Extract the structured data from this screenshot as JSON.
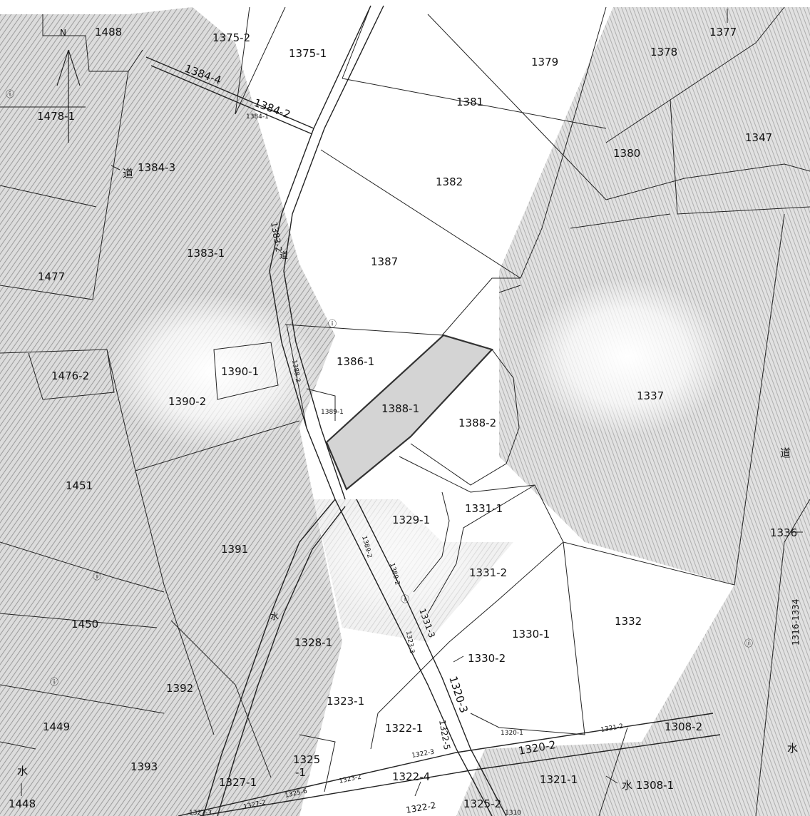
{
  "map": {
    "north_label": "N",
    "parcels": {
      "p1488": "1488",
      "p1375_2": "1375-2",
      "p1375_1": "1375-1",
      "p1379": "1379",
      "p1378": "1378",
      "p1377": "1377",
      "p1384_4": "1384-4",
      "p1384_2": "1384-2",
      "p1384_1": "1384-1",
      "p1478_1": "1478-1",
      "p1381": "1381",
      "p1347": "1347",
      "p1380": "1380",
      "p1384_3": "1384-3",
      "p1382": "1382",
      "p1383_2": "1383-2",
      "p1383_1": "1383-1",
      "p1477": "1477",
      "p1387": "1387",
      "p1386_1": "1386-1",
      "p1390_1": "1390-1",
      "p1476_2": "1476-2",
      "p1388_2_side": "1388-2",
      "p1390_2": "1390-2",
      "p1389_1": "1389-1",
      "p1388_1": "1388-1",
      "p1388_2": "1388-2",
      "p1337": "1337",
      "p1451": "1451",
      "p1331_1": "1331-1",
      "p1329_1": "1329-1",
      "p1336": "1336",
      "p1391": "1391",
      "p1389_2a": "1389-2",
      "p1389_2b": "1389-2",
      "p1331_2": "1331-2",
      "p1450": "1450",
      "p1331_3": "1331-3",
      "p1328_1": "1328-1",
      "p1330_1": "1330-1",
      "p1332": "1332",
      "p1316_1334": "1316-1334",
      "p1323_3": "1323-3",
      "p1330_2": "1330-2",
      "p1392": "1392",
      "p1320_3": "1320-3",
      "p1323_1": "1323-1",
      "p1320_1": "1320-1",
      "p1449": "1449",
      "p1308_2": "1308-2",
      "p1322_1": "1322-1",
      "p1322_5": "1322-5",
      "p1321_2": "1321-2",
      "p1320_2": "1320-2",
      "p1325_1a": "1325",
      "p1325_1b": "-1",
      "p1322_3": "1322-3",
      "p1393": "1393",
      "p1322_4": "1322-4",
      "p1323_2": "1323-2",
      "p1327_1": "1327-1",
      "p1321_1": "1321-1",
      "p1308_1": "1308-1",
      "p1448": "1448",
      "p1325_6": "1325-6",
      "p1327_2": "1327-2",
      "p1327_3": "1327-3",
      "p1322_2": "1322-2",
      "p1325_2": "1325-2",
      "p1310": "1310"
    },
    "symbols": {
      "road_1": "道",
      "road_2": "道",
      "road_3": "道",
      "water_1": "水",
      "water_2": "水",
      "water_3": "水",
      "water_4": "水",
      "marker": "ⓘ"
    },
    "highlight_color": "#d4d4d4",
    "shade_color": "#bdbdbd"
  }
}
